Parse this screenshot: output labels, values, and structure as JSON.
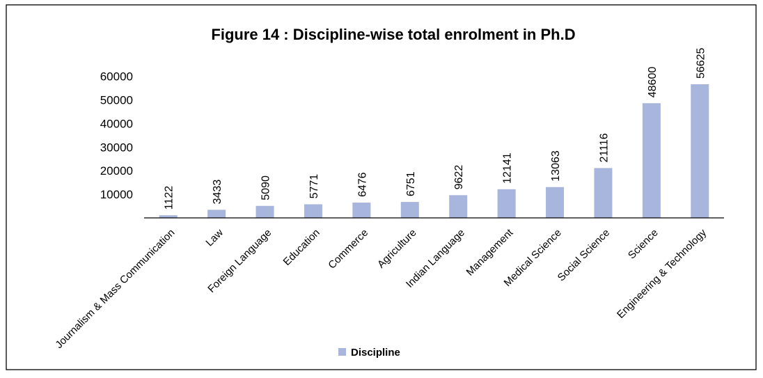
{
  "chart_data": {
    "type": "bar",
    "title": "Figure 14 : Discipline-wise total enrolment in Ph.D",
    "categories": [
      "Journalism & Mass Communication",
      "Law",
      "Foreign Language",
      "Education",
      "Commerce",
      "Agriculture",
      "Indian Language",
      "Management",
      "Medical Science",
      "Social Science",
      "Science",
      "Engineering & Technology"
    ],
    "series": [
      {
        "name": "Discipline",
        "values": [
          1122,
          3433,
          5090,
          5771,
          6476,
          6751,
          9622,
          12141,
          13063,
          21116,
          48600,
          56625
        ]
      }
    ],
    "ylim": [
      0,
      60000
    ],
    "yticks": [
      10000,
      20000,
      30000,
      40000,
      50000,
      60000
    ],
    "grid": false,
    "legend_position": "bottom",
    "data_labels": true,
    "colors": {
      "bar": "#a8b5dc",
      "frame": "#000000",
      "text": "#000000"
    }
  }
}
